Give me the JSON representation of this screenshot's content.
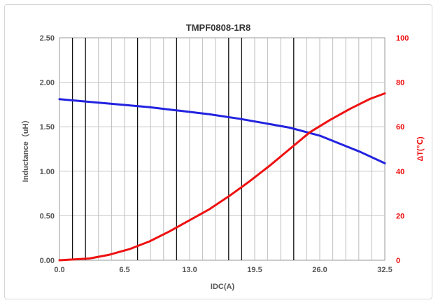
{
  "chart_data": {
    "type": "line",
    "title": "TMPF0808-1R8",
    "xlabel": "IDC(A)",
    "ylabel_left": "Inductance（uH）",
    "ylabel_right": "ΔT(℃)",
    "xlim": [
      0,
      32.5
    ],
    "ylim_left": [
      0,
      2.5
    ],
    "ylim_right": [
      0,
      100
    ],
    "x_ticks": [
      "0.0",
      "6.5",
      "13.0",
      "19.5",
      "26.0",
      "32.5"
    ],
    "y_left_ticks": [
      "0.00",
      "0.50",
      "1.00",
      "1.50",
      "2.00",
      "2.50"
    ],
    "y_right_ticks": [
      "0",
      "20",
      "40",
      "60",
      "80",
      "100"
    ],
    "grid": true,
    "series": [
      {
        "axis": "left",
        "color": "#2222e0",
        "x": [
          0,
          3,
          6,
          9,
          12,
          15,
          18,
          21,
          23,
          24,
          26,
          28,
          30,
          32.5
        ],
        "y": [
          1.81,
          1.78,
          1.75,
          1.72,
          1.68,
          1.64,
          1.59,
          1.53,
          1.49,
          1.46,
          1.4,
          1.31,
          1.22,
          1.09
        ]
      },
      {
        "axis": "right",
        "color": "#ee1111",
        "x": [
          0,
          3,
          5,
          7,
          9,
          11,
          13,
          15,
          17,
          19,
          21,
          23,
          25,
          27,
          29,
          31,
          32.5
        ],
        "y": [
          0,
          0.8,
          2.5,
          5,
          8.5,
          13,
          18,
          23,
          29,
          35.5,
          42.5,
          50,
          57.5,
          63,
          68,
          72.5,
          75
        ]
      }
    ]
  }
}
